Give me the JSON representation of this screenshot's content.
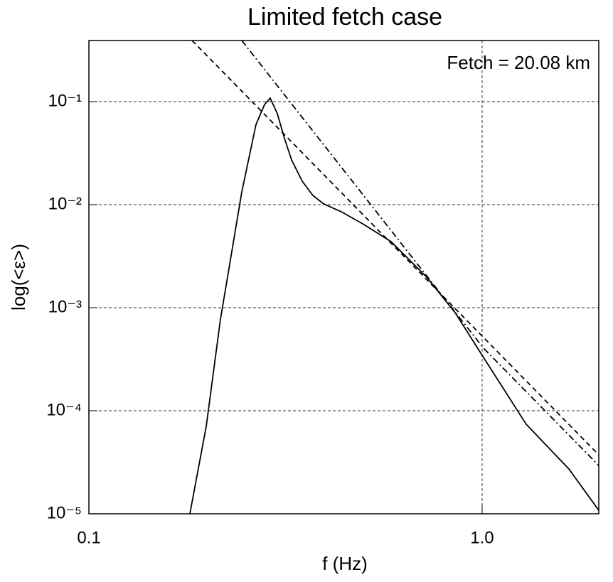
{
  "chart_data": {
    "type": "line",
    "title": "Limited fetch case",
    "x_label": "f (Hz)",
    "y_label": "log(<ε>)",
    "annotation": "Fetch =  20.08 km",
    "log_x": true,
    "log_y": true,
    "grid": true,
    "xlim": [
      0.1,
      1.98
    ],
    "ylim": [
      1e-05,
      0.392
    ],
    "xticks": [
      0.1,
      {
        "value": 1,
        "label": "1.0"
      }
    ],
    "yticks": [
      {
        "value": 0.1,
        "label": "10⁻¹"
      },
      {
        "value": 0.01,
        "label": "10⁻²"
      },
      {
        "value": 0.001,
        "label": "10⁻³"
      },
      {
        "value": 0.0001,
        "label": "10⁻⁴"
      },
      {
        "value": 1e-05,
        "label": "10⁻⁵"
      }
    ],
    "series": [
      {
        "color": "#000000",
        "dash": "none",
        "x": [
          0.1806,
          0.1988,
          0.216,
          0.2448,
          0.2661,
          0.2797,
          0.2891,
          0.3015,
          0.3144,
          0.3277,
          0.3487,
          0.3711,
          0.3951,
          0.4385,
          0.497,
          0.5868,
          0.7228,
          0.8539,
          1.0,
          1.2942,
          1.662,
          1.98
        ],
        "values": [
          1e-05,
          7.05e-05,
          0.000763,
          0.0133,
          0.0601,
          0.0938,
          0.1083,
          0.0764,
          0.0438,
          0.0272,
          0.0169,
          0.0123,
          0.0102,
          0.00853,
          0.00652,
          0.00438,
          0.00198,
          0.000895,
          0.000345,
          7.4e-05,
          2.72e-05,
          1.08e-05
        ]
      },
      {
        "color": "#000000",
        "dash": "7,5",
        "x": [
          0.183,
          1.98
        ],
        "values": [
          0.392,
          3.73e-05
        ]
      },
      {
        "color": "#000000",
        "dash": "9,4,2,4",
        "x": [
          0.2448,
          1.008,
          1.98
        ],
        "values": [
          0.392,
          0.000405,
          2.94e-05
        ]
      }
    ]
  }
}
